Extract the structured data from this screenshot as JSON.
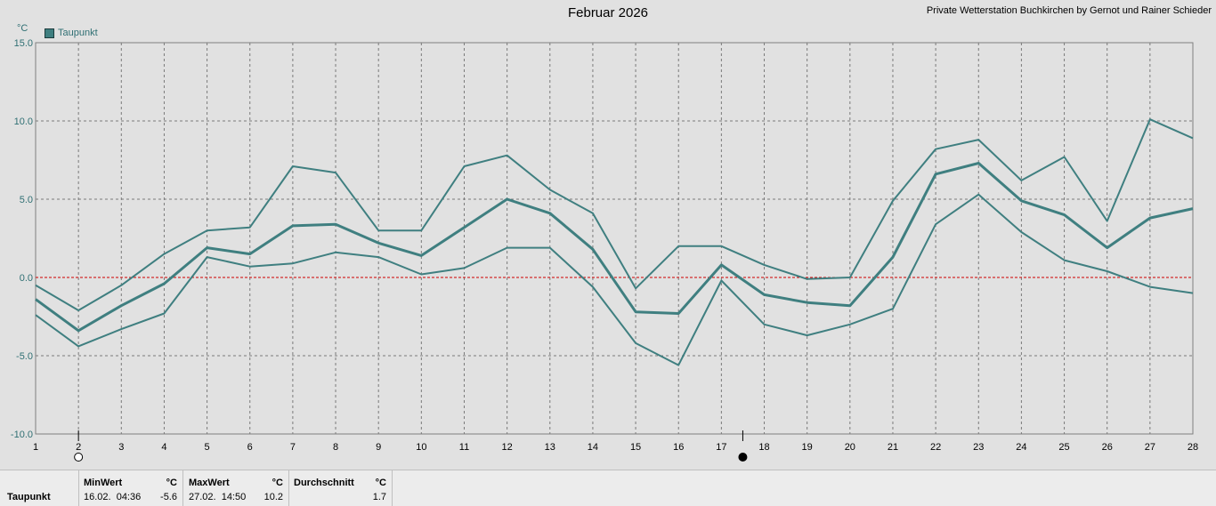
{
  "header": {
    "title": "Februar 2026",
    "credit": "Private Wetterstation Buchkirchen by Gernot und Rainer Schieder",
    "unit": "°C"
  },
  "legend": {
    "label": "Taupunkt",
    "color": "#3f7f80"
  },
  "chart_data": {
    "type": "line",
    "title": "Februar 2026",
    "ylabel": "°C",
    "xlabel": "",
    "ylim": [
      -10,
      15
    ],
    "yticks": [
      "15.0",
      "10.0",
      "5.0",
      "0.0",
      "-5.0",
      "-10.0"
    ],
    "grid": true,
    "legend_position": "top-left",
    "reference_line": {
      "y": 0,
      "color": "#d00000"
    },
    "x": [
      1,
      2,
      3,
      4,
      5,
      6,
      7,
      8,
      9,
      10,
      11,
      12,
      13,
      14,
      15,
      16,
      17,
      18,
      19,
      20,
      21,
      22,
      23,
      24,
      25,
      26,
      27,
      28
    ],
    "series": [
      {
        "name": "Taupunkt",
        "role": "max",
        "values": [
          -0.5,
          -2.1,
          -0.5,
          1.5,
          3.0,
          3.2,
          7.1,
          6.7,
          3.0,
          3.0,
          7.1,
          7.8,
          5.6,
          4.1,
          -0.7,
          2.0,
          2.0,
          0.8,
          -0.1,
          0.0,
          4.9,
          8.2,
          8.8,
          6.2,
          7.7,
          3.6,
          10.1,
          8.9
        ]
      },
      {
        "name": "Taupunkt",
        "role": "avg",
        "values": [
          -1.4,
          -3.4,
          -1.8,
          -0.4,
          1.9,
          1.5,
          3.3,
          3.4,
          2.2,
          1.4,
          3.2,
          5.0,
          4.1,
          1.8,
          -2.2,
          -2.3,
          0.8,
          -1.1,
          -1.6,
          -1.8,
          1.3,
          6.6,
          7.3,
          4.9,
          4.0,
          1.9,
          3.8,
          4.4
        ]
      },
      {
        "name": "Taupunkt",
        "role": "min",
        "values": [
          -2.4,
          -4.4,
          -3.3,
          -2.3,
          1.3,
          0.7,
          0.9,
          1.6,
          1.3,
          0.2,
          0.6,
          1.9,
          1.9,
          -0.6,
          -4.2,
          -5.6,
          -0.2,
          -3.0,
          -3.7,
          -3.0,
          -2.0,
          3.4,
          5.3,
          2.9,
          1.1,
          0.4,
          -0.6,
          -1.0
        ]
      }
    ],
    "moon_phases": [
      {
        "day": 2,
        "phase": "full-moon"
      },
      {
        "day": 17.5,
        "phase": "new-moon"
      }
    ]
  },
  "stats": {
    "row_label": "Taupunkt",
    "min": {
      "header": "MinWert",
      "unit": "°C",
      "date": "16.02.  04:36",
      "value": "-5.6"
    },
    "max": {
      "header": "MaxWert",
      "unit": "°C",
      "date": "27.02.  14:50",
      "value": "10.2"
    },
    "avg": {
      "header": "Durchschnitt",
      "unit": "°C",
      "value": "1.7"
    }
  }
}
